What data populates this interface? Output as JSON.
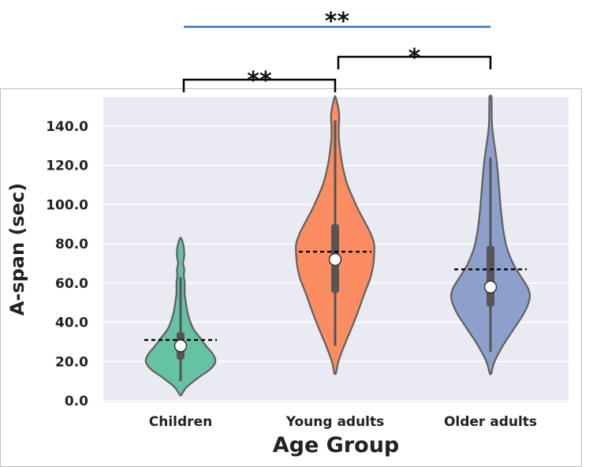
{
  "chart_data": {
    "type": "violin",
    "xlabel": "Age Group",
    "ylabel": "A-span (sec)",
    "ylim": [
      0,
      150
    ],
    "yticks": [
      0,
      20,
      40,
      60,
      80,
      100,
      120,
      140
    ],
    "ytick_labels": [
      "0.0",
      "20.0",
      "40.0",
      "60.0",
      "80.0",
      "100.0",
      "120.0",
      "140.0"
    ],
    "grid": true,
    "background": "#eaeaf2",
    "groups": [
      {
        "category": "Children",
        "color": "#66c2a5",
        "mean": 31,
        "median": 28,
        "q1": 21,
        "q3": 35,
        "whisker_low": 10,
        "whisker_high": 63,
        "min": 3,
        "max": 83,
        "density_profile": [
          [
            3,
            0.02
          ],
          [
            7,
            0.15
          ],
          [
            12,
            0.45
          ],
          [
            16,
            0.72
          ],
          [
            20,
            0.85
          ],
          [
            24,
            0.78
          ],
          [
            28,
            0.62
          ],
          [
            32,
            0.48
          ],
          [
            36,
            0.33
          ],
          [
            40,
            0.24
          ],
          [
            45,
            0.17
          ],
          [
            50,
            0.13
          ],
          [
            55,
            0.1
          ],
          [
            60,
            0.1
          ],
          [
            64,
            0.08
          ],
          [
            67,
            0.09
          ],
          [
            70,
            0.06
          ],
          [
            74,
            0.09
          ],
          [
            78,
            0.08
          ],
          [
            81,
            0.05
          ],
          [
            83,
            0.01
          ]
        ]
      },
      {
        "category": "Young adults",
        "color": "#fc8d62",
        "mean": 76,
        "median": 72,
        "q1": 55,
        "q3": 90,
        "whisker_low": 28,
        "whisker_high": 143,
        "min": 14,
        "max": 155,
        "density_profile": [
          [
            14,
            0.02
          ],
          [
            20,
            0.08
          ],
          [
            28,
            0.22
          ],
          [
            36,
            0.38
          ],
          [
            45,
            0.55
          ],
          [
            55,
            0.72
          ],
          [
            62,
            0.85
          ],
          [
            68,
            0.92
          ],
          [
            74,
            0.95
          ],
          [
            80,
            0.95
          ],
          [
            86,
            0.85
          ],
          [
            92,
            0.7
          ],
          [
            98,
            0.55
          ],
          [
            104,
            0.42
          ],
          [
            110,
            0.3
          ],
          [
            116,
            0.22
          ],
          [
            122,
            0.16
          ],
          [
            128,
            0.12
          ],
          [
            134,
            0.09
          ],
          [
            140,
            0.09
          ],
          [
            145,
            0.1
          ],
          [
            150,
            0.07
          ],
          [
            155,
            0.01
          ]
        ]
      },
      {
        "category": "Older adults",
        "color": "#8da0cb",
        "mean": 67,
        "median": 58,
        "q1": 48,
        "q3": 79,
        "whisker_low": 25,
        "whisker_high": 124,
        "min": 14,
        "max": 155,
        "density_profile": [
          [
            14,
            0.02
          ],
          [
            20,
            0.1
          ],
          [
            28,
            0.3
          ],
          [
            36,
            0.55
          ],
          [
            44,
            0.8
          ],
          [
            50,
            0.93
          ],
          [
            54,
            0.96
          ],
          [
            58,
            0.9
          ],
          [
            64,
            0.72
          ],
          [
            70,
            0.55
          ],
          [
            78,
            0.4
          ],
          [
            86,
            0.32
          ],
          [
            96,
            0.26
          ],
          [
            106,
            0.22
          ],
          [
            116,
            0.18
          ],
          [
            124,
            0.14
          ],
          [
            130,
            0.1
          ],
          [
            136,
            0.06
          ],
          [
            142,
            0.035
          ],
          [
            148,
            0.03
          ],
          [
            155,
            0.025
          ]
        ]
      }
    ],
    "significance": [
      {
        "from": "Children",
        "to": "Young adults",
        "label": "**",
        "color": "#000000"
      },
      {
        "from": "Young adults",
        "to": "Older adults",
        "label": "*",
        "color": "#000000"
      },
      {
        "from": "Children",
        "to": "Older adults",
        "label": "**",
        "color": "#3a6fb5"
      }
    ]
  }
}
